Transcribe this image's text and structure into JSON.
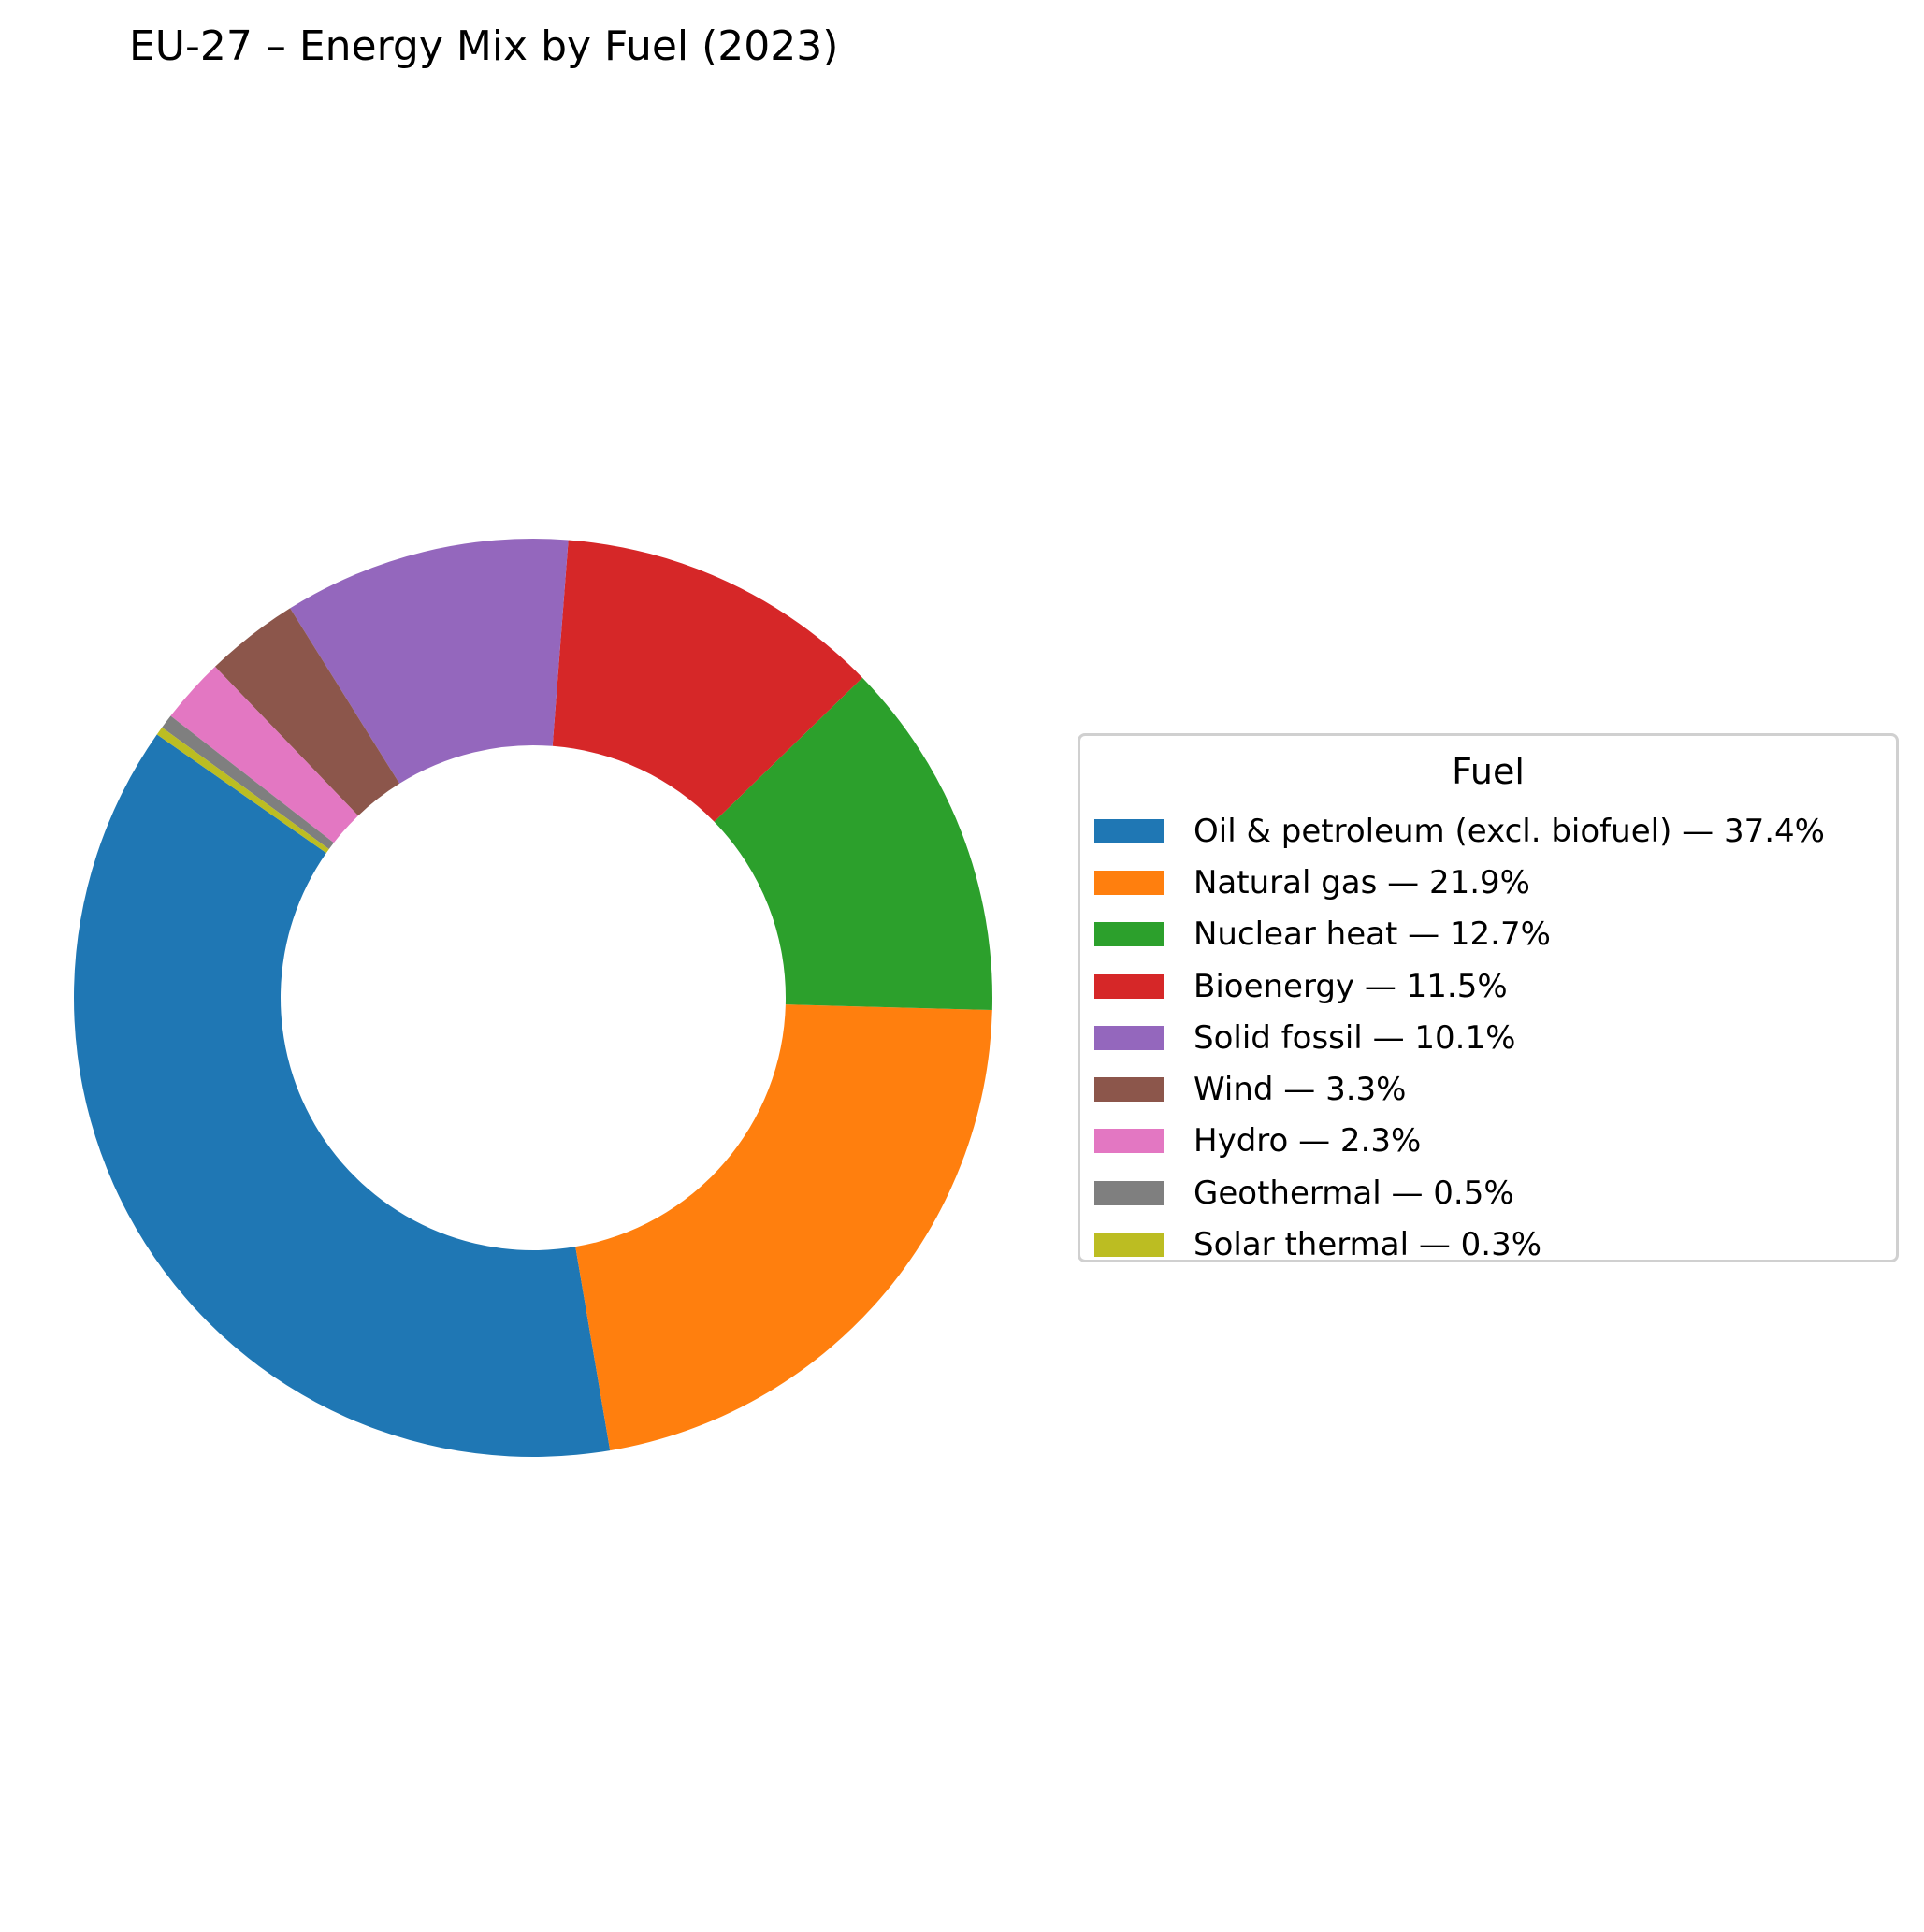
{
  "chart_data": {
    "type": "pie",
    "title": "EU-27 – Energy Mix by Fuel (2023)",
    "legend_title": "Fuel",
    "legend_position": "right",
    "donut": true,
    "slices": [
      {
        "label": "Oil & petroleum (excl. biofuel) — 37.4%",
        "value": 37.4,
        "color": "#1f77b4"
      },
      {
        "label": "Natural gas — 21.9%",
        "value": 21.9,
        "color": "#ff7f0e"
      },
      {
        "label": "Nuclear heat — 12.7%",
        "value": 12.7,
        "color": "#2ca02c"
      },
      {
        "label": "Bioenergy — 11.5%",
        "value": 11.5,
        "color": "#d62728"
      },
      {
        "label": "Solid fossil — 10.1%",
        "value": 10.1,
        "color": "#9467bd"
      },
      {
        "label": "Wind — 3.3%",
        "value": 3.3,
        "color": "#8c564b"
      },
      {
        "label": "Hydro — 2.3%",
        "value": 2.3,
        "color": "#e377c2"
      },
      {
        "label": "Geothermal — 0.5%",
        "value": 0.5,
        "color": "#7f7f7f"
      },
      {
        "label": "Solar thermal — 0.3%",
        "value": 0.3,
        "color": "#bcbd22"
      }
    ]
  }
}
